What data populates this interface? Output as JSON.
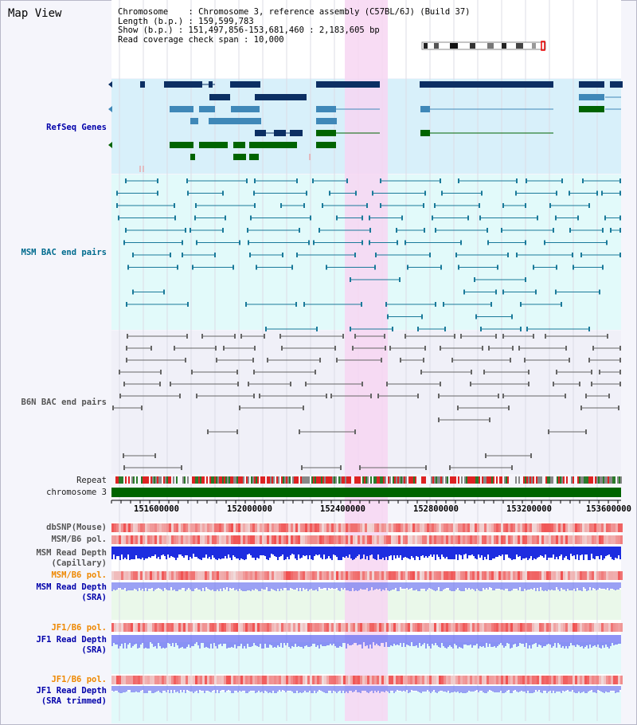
{
  "panel": {
    "title": "Map View"
  },
  "info": {
    "chromosome": "Chromosome    : Chromosome 3, reference assembly (C57BL/6J) (Build 37)",
    "length": "Length (b.p.) : 159,599,783",
    "show": "Show (b.p.) : 151,497,856-153,681,460 : 2,183,605 bp",
    "coverage": "Read coverage check span : 10,000"
  },
  "tracks": {
    "refseq": "RefSeq Genes",
    "msm_bac": "MSM BAC end pairs",
    "b6n_bac": "B6N BAC end pairs",
    "repeat": "Repeat",
    "chromosome": "chromosome 3",
    "dbsnp": "dbSNP(Mouse)",
    "msm_b6_pol_1": "MSM/B6 pol.",
    "msm_read_depth_cap_1": "MSM Read Depth",
    "msm_read_depth_cap_2": "(Capillary)",
    "msm_b6_pol_2": "MSM/B6 pol.",
    "msm_read_depth_sra_1": "MSM Read Depth",
    "msm_read_depth_sra_2": "(SRA)",
    "jf1_b6_pol_1": "JF1/B6 pol.",
    "jf1_read_depth_sra_1": "JF1 Read Depth",
    "jf1_read_depth_sra_2": "(SRA)",
    "jf1_b6_pol_2": "JF1/B6 pol.",
    "jf1_read_depth_trim_1": "JF1 Read Depth",
    "jf1_read_depth_trim_2": "(SRA trimmed)"
  },
  "axis": {
    "ticks": [
      "151600000",
      "152000000",
      "152400000",
      "152800000",
      "153200000",
      "153600000"
    ]
  },
  "colors": {
    "highlight": "#f7d6f2",
    "refseq_bg": "#d8f0fa",
    "msm_bg": "#e2fafa",
    "b6n_bg": "#f0f0f8",
    "gene_dark": "#0c2f63",
    "gene_mid": "#3f88b8",
    "gene_green": "#006400",
    "bac_teal": "#1a7a9a",
    "bac_gray": "#666666",
    "chrom_green": "#006400"
  }
}
